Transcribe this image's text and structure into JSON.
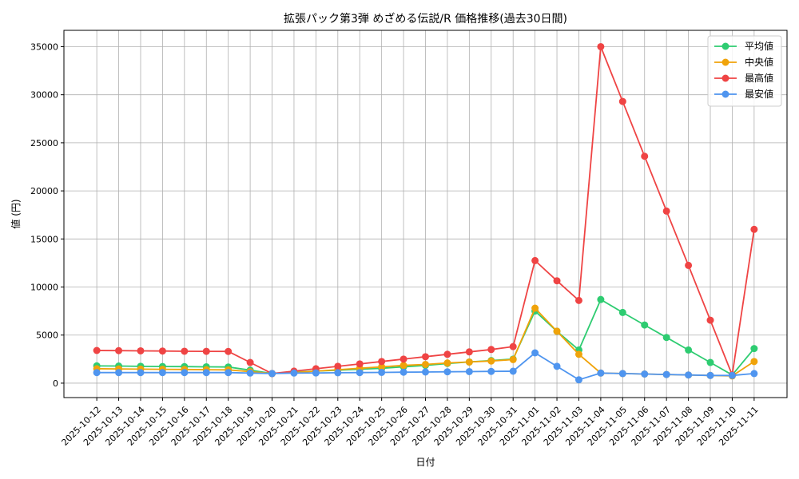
{
  "chart_data": {
    "type": "line",
    "title": "拡張パック第3弾 めざめる伝説/R 価格推移(過去30日間)",
    "xlabel": "日付",
    "ylabel": "値 (円)",
    "ylim": [
      -1500,
      36700
    ],
    "yticks": [
      0,
      5000,
      10000,
      15000,
      20000,
      25000,
      30000,
      35000
    ],
    "grid": true,
    "legend_position": "top-right",
    "categories": [
      "2025-10-12",
      "2025-10-13",
      "2025-10-14",
      "2025-10-15",
      "2025-10-16",
      "2025-10-17",
      "2025-10-18",
      "2025-10-19",
      "2025-10-20",
      "2025-10-21",
      "2025-10-22",
      "2025-10-23",
      "2025-10-24",
      "2025-10-25",
      "2025-10-26",
      "2025-10-27",
      "2025-10-28",
      "2025-10-29",
      "2025-10-30",
      "2025-10-31",
      "2025-11-01",
      "2025-11-02",
      "2025-11-03",
      "2025-11-04",
      "2025-11-05",
      "2025-11-06",
      "2025-11-07",
      "2025-11-08",
      "2025-11-09",
      "2025-11-10",
      "2025-11-11"
    ],
    "series": [
      {
        "name": "平均値",
        "color": "#2ecc71",
        "values": [
          1800,
          1780,
          1750,
          1730,
          1720,
          1700,
          1680,
          1350,
          1000,
          1150,
          1250,
          1350,
          1450,
          1550,
          1700,
          1850,
          2050,
          2200,
          2350,
          2500,
          7500,
          5400,
          3450,
          8700,
          7350,
          6050,
          4750,
          3450,
          2150,
          850,
          3600
        ]
      },
      {
        "name": "中央値",
        "color": "#f0a30a",
        "values": [
          1500,
          1480,
          1460,
          1440,
          1420,
          1400,
          1380,
          1200,
          1000,
          1100,
          1250,
          1400,
          1550,
          1700,
          1850,
          1950,
          2100,
          2200,
          2300,
          2450,
          7800,
          5400,
          3000,
          1050,
          1000,
          950,
          900,
          850,
          800,
          750,
          2250
        ]
      },
      {
        "name": "最高値",
        "color": "#ef4444",
        "values": [
          3400,
          3380,
          3360,
          3340,
          3320,
          3310,
          3300,
          2150,
          1000,
          1250,
          1500,
          1750,
          2000,
          2250,
          2500,
          2750,
          3000,
          3250,
          3500,
          3800,
          12750,
          10650,
          8600,
          35000,
          29300,
          23600,
          17900,
          12250,
          6550,
          850,
          16000
        ]
      },
      {
        "name": "最安値",
        "color": "#4f95ef",
        "values": [
          1100,
          1100,
          1100,
          1100,
          1100,
          1100,
          1100,
          1050,
          1000,
          1050,
          1060,
          1080,
          1100,
          1120,
          1140,
          1160,
          1180,
          1200,
          1220,
          1240,
          3150,
          1750,
          350,
          1050,
          1000,
          950,
          900,
          850,
          800,
          800,
          1000
        ]
      }
    ]
  }
}
